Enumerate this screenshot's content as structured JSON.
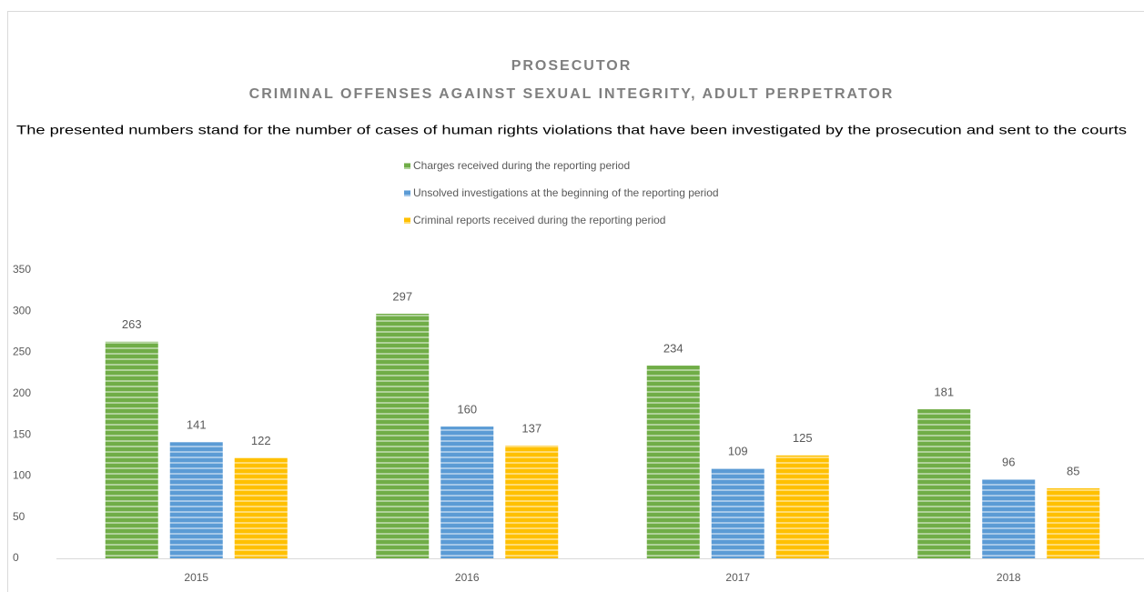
{
  "chart_data": {
    "type": "bar",
    "title": "PROSECUTOR",
    "subtitle": "CRIMINAL OFFENSES AGAINST SEXUAL INTEGRITY, ADULT PERPETRATOR",
    "description": "The presented numbers stand for the number of cases of human rights violations that have been investigated by the prosecution and sent to the courts",
    "categories": [
      "2015",
      "2016",
      "2017",
      "2018"
    ],
    "series": [
      {
        "name": "Charges received during the reporting period",
        "color": "#70ad47",
        "values": [
          263,
          297,
          234,
          181
        ]
      },
      {
        "name": "Unsolved investigations at the beginning of the reporting period",
        "color": "#5b9bd5",
        "values": [
          141,
          160,
          109,
          96
        ]
      },
      {
        "name": "Criminal reports received during the reporting period",
        "color": "#ffc000",
        "values": [
          122,
          137,
          125,
          85
        ]
      }
    ],
    "ylim": [
      0,
      350
    ],
    "yticks": [
      0,
      50,
      100,
      150,
      200,
      250,
      300,
      350
    ],
    "grid": false
  }
}
